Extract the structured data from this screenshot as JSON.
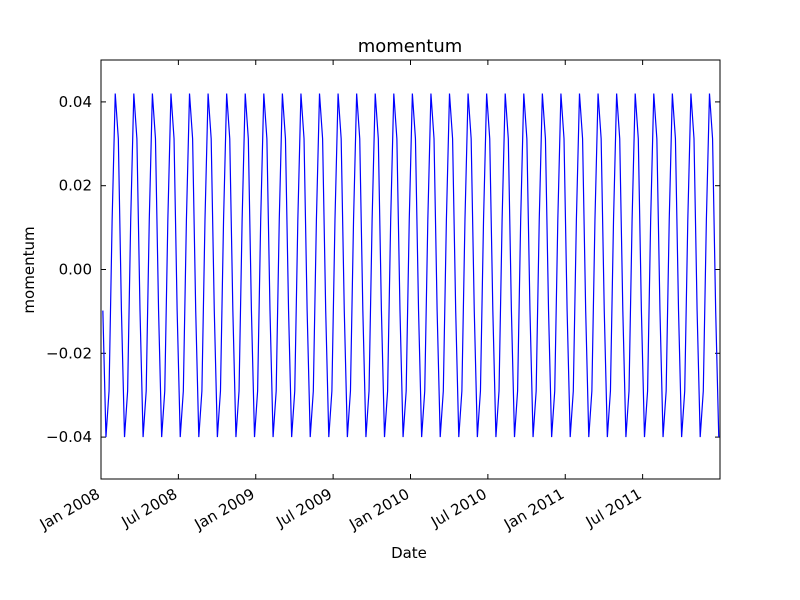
{
  "chart_data": {
    "type": "line",
    "title": "momentum",
    "x_label": "Date",
    "y_label": "momentum",
    "xlim": [
      2008,
      2012
    ],
    "ylim": [
      -0.05,
      0.05
    ],
    "xticks": [
      {
        "value": 2008,
        "label": "Jan 2008"
      },
      {
        "value": 2008.5,
        "label": "Jul 2008"
      },
      {
        "value": 2009,
        "label": "Jan 2009"
      },
      {
        "value": 2009.5,
        "label": "Jul 2009"
      },
      {
        "value": 2010,
        "label": "Jan 2010"
      },
      {
        "value": 2010.5,
        "label": "Jul 2010"
      },
      {
        "value": 2011,
        "label": "Jan 2011"
      },
      {
        "value": 2011.5,
        "label": "Jul 2011"
      }
    ],
    "yticks": [
      {
        "value": -0.04,
        "label": "−0.04"
      },
      {
        "value": -0.02,
        "label": "−0.02"
      },
      {
        "value": 0,
        "label": "0.00"
      },
      0.02,
      0.04
    ],
    "color": "#0000ff",
    "x": [
      2008.012,
      2008.032,
      2008.052,
      2008.072,
      2008.092,
      2008.112,
      2008.132,
      2008.152,
      2008.172,
      2008.192,
      2008.212,
      2008.232,
      2008.252,
      2008.272,
      2008.292,
      2008.312,
      2008.332,
      2008.352,
      2008.372,
      2008.392,
      2008.412,
      2008.432,
      2008.452,
      2008.472,
      2008.492,
      2008.512,
      2008.532,
      2008.552,
      2008.572,
      2008.592,
      2008.612,
      2008.632,
      2008.652,
      2008.672,
      2008.692,
      2008.712,
      2008.732,
      2008.752,
      2008.772,
      2008.792,
      2008.812,
      2008.832,
      2008.852,
      2008.872,
      2008.892,
      2008.912,
      2008.932,
      2008.952,
      2008.972,
      2008.992,
      2009.012,
      2009.032,
      2009.052,
      2009.072,
      2009.092,
      2009.112,
      2009.132,
      2009.152,
      2009.172,
      2009.192,
      2009.212,
      2009.232,
      2009.252,
      2009.272,
      2009.292,
      2009.312,
      2009.332,
      2009.352,
      2009.372,
      2009.392,
      2009.412,
      2009.432,
      2009.452,
      2009.472,
      2009.492,
      2009.512,
      2009.532,
      2009.552,
      2009.572,
      2009.592,
      2009.612,
      2009.632,
      2009.652,
      2009.672,
      2009.692,
      2009.712,
      2009.732,
      2009.752,
      2009.772,
      2009.792,
      2009.812,
      2009.832,
      2009.852,
      2009.872,
      2009.892,
      2009.912,
      2009.932,
      2009.952,
      2009.972,
      2009.992,
      2010.012,
      2010.032,
      2010.052,
      2010.072,
      2010.092,
      2010.112,
      2010.132,
      2010.152,
      2010.172,
      2010.192,
      2010.212,
      2010.232,
      2010.252,
      2010.272,
      2010.292,
      2010.312,
      2010.332,
      2010.352,
      2010.372,
      2010.392,
      2010.412,
      2010.432,
      2010.452,
      2010.472,
      2010.492,
      2010.512,
      2010.532,
      2010.552,
      2010.572,
      2010.592,
      2010.612,
      2010.632,
      2010.652,
      2010.672,
      2010.692,
      2010.712,
      2010.732,
      2010.752,
      2010.772,
      2010.792,
      2010.812,
      2010.832,
      2010.852,
      2010.872,
      2010.892,
      2010.912,
      2010.932,
      2010.952,
      2010.972,
      2010.992,
      2011.012,
      2011.032,
      2011.052,
      2011.072,
      2011.092,
      2011.112,
      2011.132,
      2011.152,
      2011.172,
      2011.192,
      2011.212,
      2011.232,
      2011.252,
      2011.272,
      2011.292,
      2011.312,
      2011.332,
      2011.352,
      2011.372,
      2011.392,
      2011.412,
      2011.432,
      2011.452,
      2011.472,
      2011.492,
      2011.512,
      2011.532,
      2011.552,
      2011.572,
      2011.592,
      2011.612,
      2011.632,
      2011.652,
      2011.672,
      2011.692,
      2011.712,
      2011.732,
      2011.752,
      2011.772,
      2011.792,
      2011.812,
      2011.832,
      2011.852,
      2011.872,
      2011.892,
      2011.912,
      2011.932,
      2011.952,
      2011.972,
      2011.992
    ],
    "values": [
      -0.0098,
      -0.04,
      -0.029,
      0.0119,
      0.042,
      0.0312,
      -0.0098,
      -0.04,
      -0.029,
      0.0119,
      0.042,
      0.0312,
      -0.0098,
      -0.04,
      -0.029,
      0.0119,
      0.042,
      0.0312,
      -0.0098,
      -0.04,
      -0.029,
      0.0119,
      0.042,
      0.0312,
      -0.0098,
      -0.04,
      -0.029,
      0.0119,
      0.042,
      0.0312,
      -0.0098,
      -0.04,
      -0.029,
      0.0119,
      0.042,
      0.0312,
      -0.0098,
      -0.04,
      -0.029,
      0.0119,
      0.042,
      0.0312,
      -0.0098,
      -0.04,
      -0.029,
      0.0119,
      0.042,
      0.0312,
      -0.0098,
      -0.04,
      -0.029,
      0.0119,
      0.042,
      0.0312,
      -0.0098,
      -0.04,
      -0.029,
      0.0119,
      0.042,
      0.0312,
      -0.0098,
      -0.04,
      -0.029,
      0.0119,
      0.042,
      0.0312,
      -0.0098,
      -0.04,
      -0.029,
      0.0119,
      0.042,
      0.0312,
      -0.0098,
      -0.04,
      -0.029,
      0.0119,
      0.042,
      0.0312,
      -0.0098,
      -0.04,
      -0.029,
      0.0119,
      0.042,
      0.0312,
      -0.0098,
      -0.04,
      -0.029,
      0.0119,
      0.042,
      0.0312,
      -0.0098,
      -0.04,
      -0.029,
      0.0119,
      0.042,
      0.0312,
      -0.0098,
      -0.04,
      -0.029,
      0.0119,
      0.042,
      0.0312,
      -0.0098,
      -0.04,
      -0.029,
      0.0119,
      0.042,
      0.0312,
      -0.0098,
      -0.04,
      -0.029,
      0.0119,
      0.042,
      0.0312,
      -0.0098,
      -0.04,
      -0.029,
      0.0119,
      0.042,
      0.0312,
      -0.0098,
      -0.04,
      -0.029,
      0.0119,
      0.042,
      0.0312,
      -0.0098,
      -0.04,
      -0.029,
      0.0119,
      0.042,
      0.0312,
      -0.0098,
      -0.04,
      -0.029,
      0.0119,
      0.042,
      0.0312,
      -0.0098,
      -0.04,
      -0.029,
      0.0119,
      0.042,
      0.0312,
      -0.0098,
      -0.04,
      -0.029,
      0.0119,
      0.042,
      0.0312,
      -0.0098,
      -0.04,
      -0.029,
      0.0119,
      0.042,
      0.0312,
      -0.0098,
      -0.04,
      -0.029,
      0.0119,
      0.042,
      0.0312,
      -0.0098,
      -0.04,
      -0.029,
      0.0119,
      0.042,
      0.0312,
      -0.0098,
      -0.04,
      -0.029,
      0.0119,
      0.042,
      0.0312,
      -0.0098,
      -0.04,
      -0.029,
      0.0119,
      0.042,
      0.0312,
      -0.0098,
      -0.04,
      -0.029,
      0.0119,
      0.042,
      0.0312,
      -0.0098,
      -0.04,
      -0.029,
      0.0119,
      0.042,
      0.0312,
      -0.0098,
      -0.04,
      -0.029,
      0.0119,
      0.042,
      0.0312,
      -0.0098,
      -0.04
    ]
  }
}
